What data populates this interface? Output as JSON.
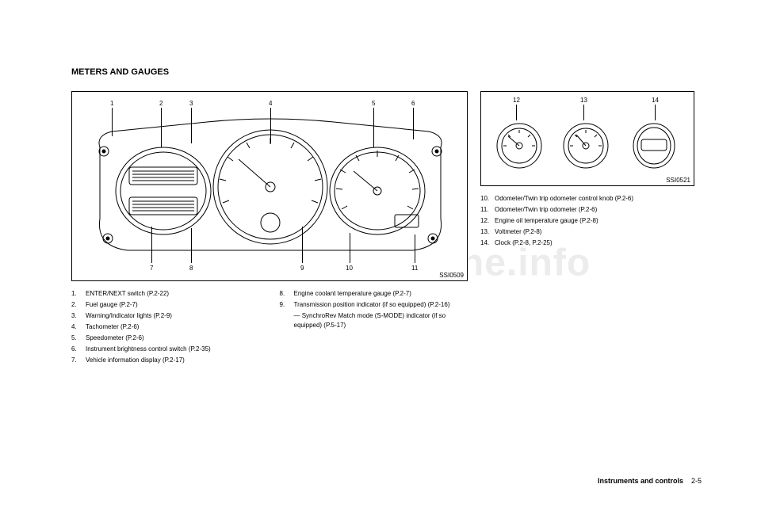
{
  "watermark": "carmanualsonline.info",
  "title": "METERS AND GAUGES",
  "figMain": {
    "code": "SSI0509",
    "callouts_top": [
      "1",
      "2",
      "3",
      "4",
      "5",
      "6"
    ],
    "callouts_bottom": [
      "7",
      "8",
      "9",
      "10",
      "11"
    ]
  },
  "figSmall": {
    "code": "SSI0521",
    "callouts_top": [
      "12",
      "13",
      "14"
    ]
  },
  "legendLeft": [
    {
      "n": "1.",
      "t": "ENTER/NEXT switch (P.2-22)"
    },
    {
      "n": "2.",
      "t": "Fuel gauge (P.2-7)"
    },
    {
      "n": "3.",
      "t": "Warning/Indicator lights (P.2-9)"
    },
    {
      "n": "4.",
      "t": "Tachometer (P.2-6)"
    },
    {
      "n": "5.",
      "t": "Speedometer (P.2-6)"
    },
    {
      "n": "6.",
      "t": "Instrument brightness control switch (P.2-35)"
    },
    {
      "n": "7.",
      "t": "Vehicle information display (P.2-17)"
    }
  ],
  "legendMid": [
    {
      "n": "8.",
      "t": "Engine coolant temperature gauge (P.2-7)"
    },
    {
      "n": "9.",
      "t": "Transmission position indicator (if so equipped) (P.2-16)"
    }
  ],
  "legendMidSub": "— SynchroRev Match mode (S-MODE) indica­tor (if so equipped) (P.5-17)",
  "legendRight": [
    {
      "n": "10.",
      "t": "Odometer/Twin trip odometer control knob (P.2-6)"
    },
    {
      "n": "11.",
      "t": "Odometer/Twin trip odometer (P.2-6)"
    },
    {
      "n": "12.",
      "t": "Engine oil temperature gauge (P.2-8)"
    },
    {
      "n": "13.",
      "t": "Voltmeter (P.2-8)"
    },
    {
      "n": "14.",
      "t": "Clock (P.2-8, P.2-25)"
    }
  ],
  "footer": {
    "section": "Instruments and controls",
    "page": "2-5"
  }
}
